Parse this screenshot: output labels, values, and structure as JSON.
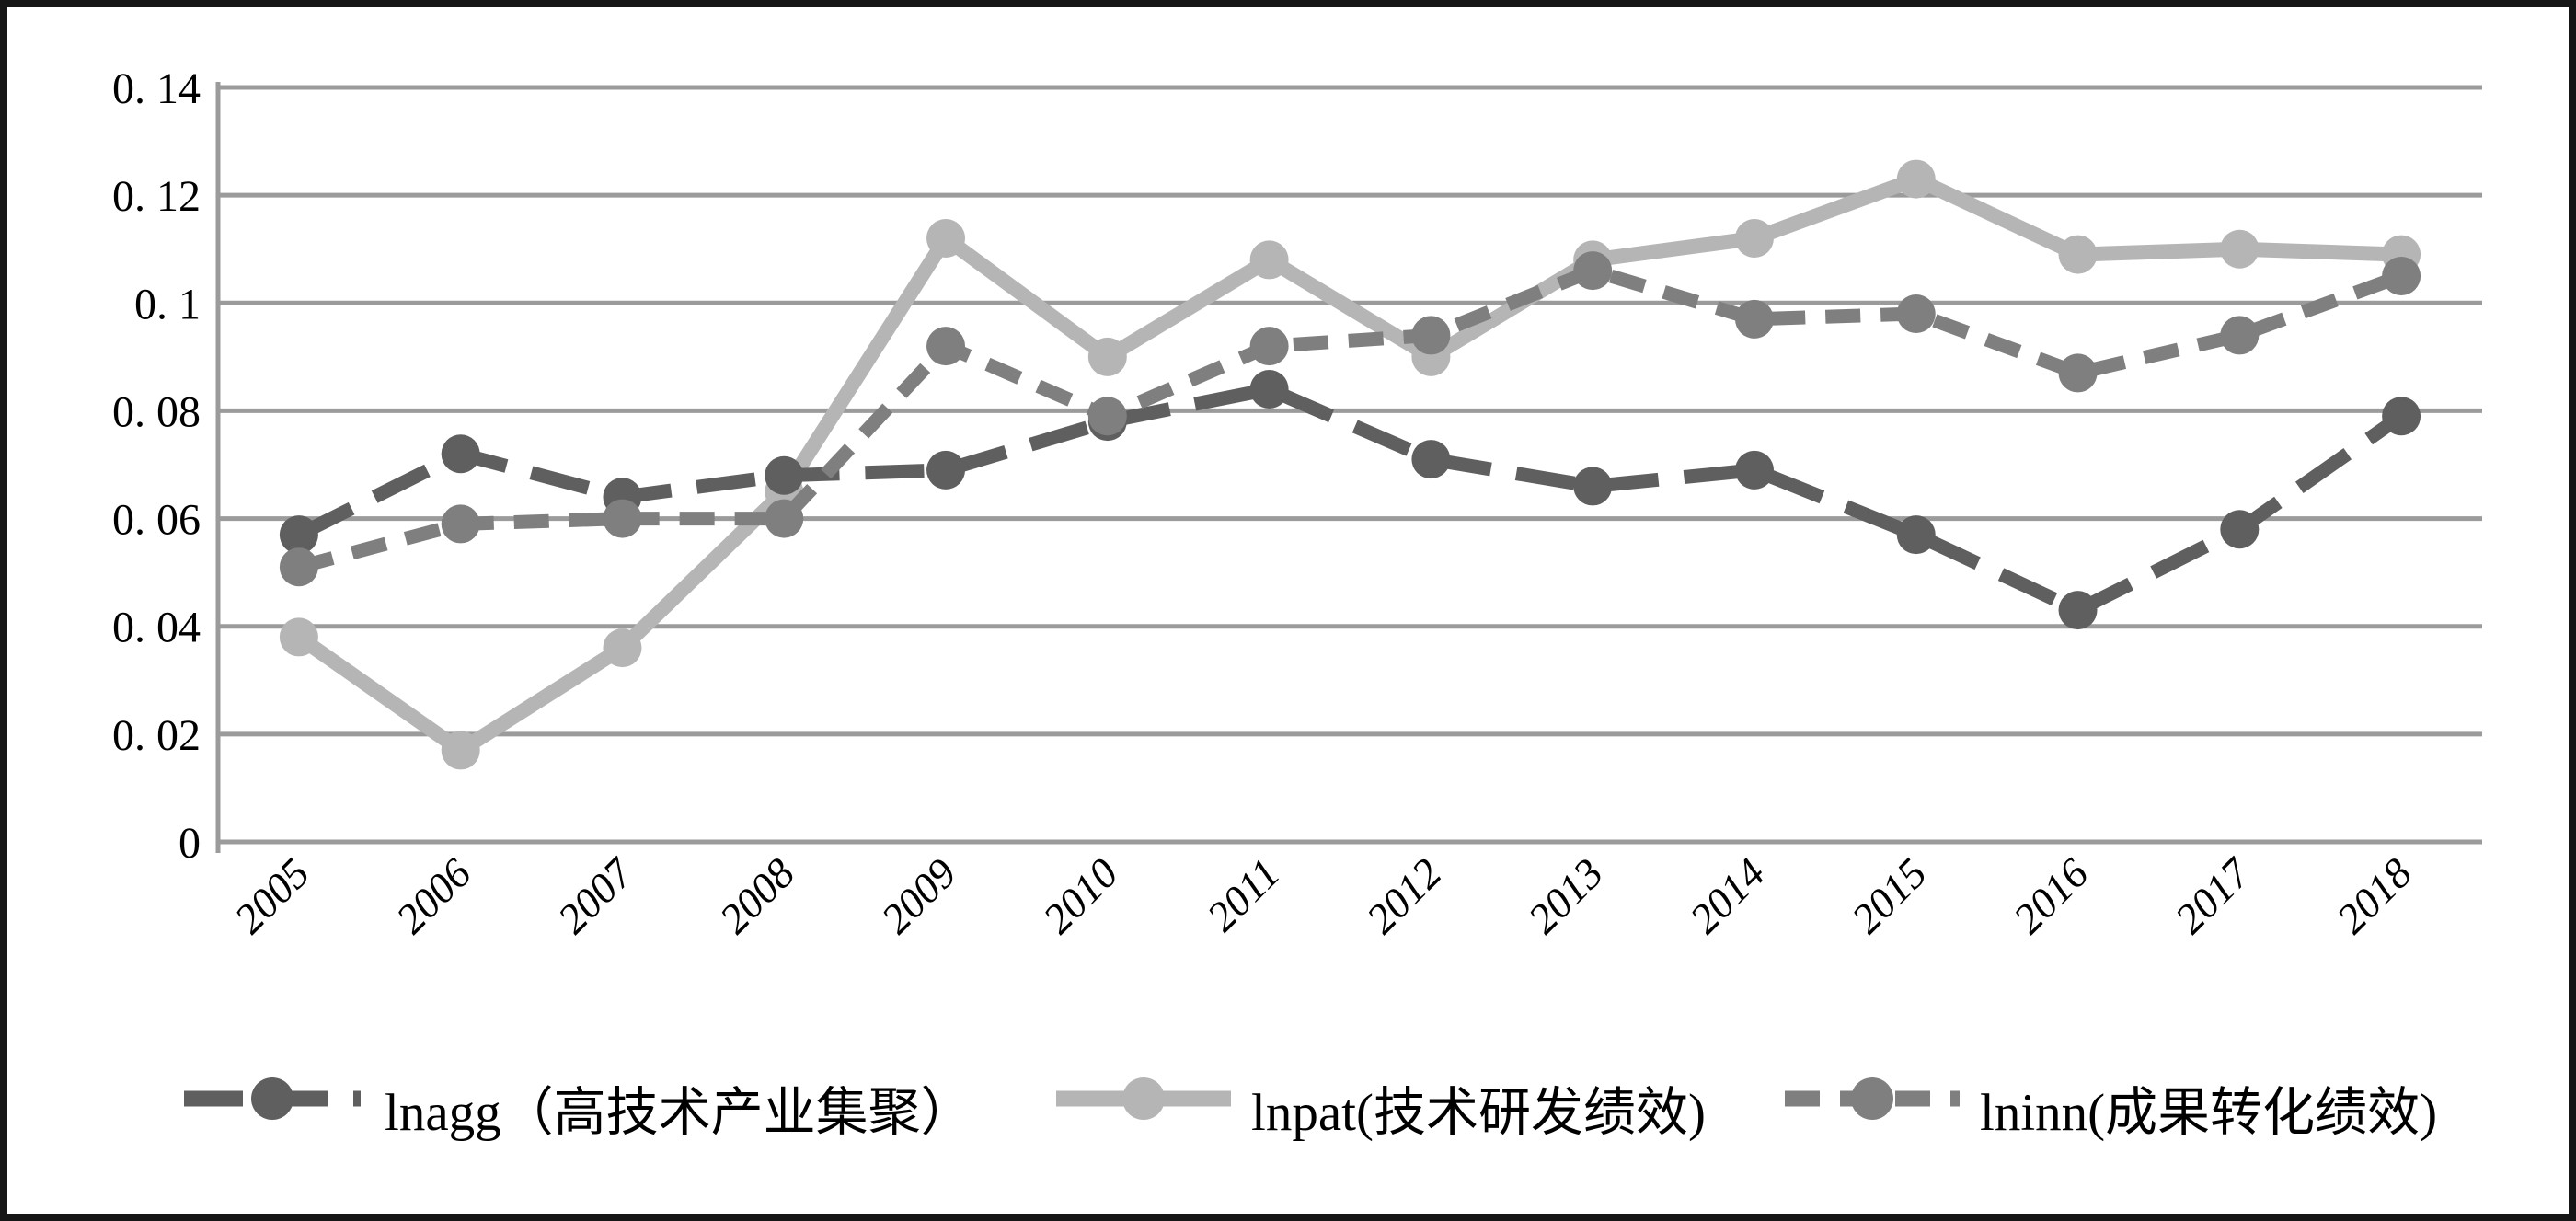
{
  "chart_data": {
    "type": "line",
    "title": "",
    "xlabel": "",
    "ylabel": "",
    "categories": [
      "2005",
      "2006",
      "2007",
      "2008",
      "2009",
      "2010",
      "2011",
      "2012",
      "2013",
      "2014",
      "2015",
      "2016",
      "2017",
      "2018"
    ],
    "series": [
      {
        "id": "lnpat",
        "label": "lnpat(技术研发绩效)",
        "color": "#b5b5b5",
        "line_style": "solid",
        "marker": "circle",
        "values": [
          0.038,
          0.017,
          0.036,
          0.065,
          0.112,
          0.09,
          0.108,
          0.09,
          0.108,
          0.112,
          0.123,
          0.109,
          0.11,
          0.109
        ]
      },
      {
        "id": "lnagg",
        "label": "lnagg（高技术产业集聚）",
        "color": "#5f5f5f",
        "line_style": "long-dash",
        "marker": "circle",
        "values": [
          0.057,
          0.072,
          0.064,
          0.068,
          0.069,
          0.078,
          0.084,
          0.071,
          0.066,
          0.069,
          0.057,
          0.043,
          0.058,
          0.079
        ]
      },
      {
        "id": "lninn",
        "label": "lninn(成果转化绩效)",
        "color": "#7f7f7f",
        "line_style": "dash",
        "marker": "circle",
        "values": [
          0.051,
          0.059,
          0.06,
          0.06,
          0.092,
          0.079,
          0.092,
          0.094,
          0.106,
          0.097,
          0.098,
          0.087,
          0.094,
          0.105
        ]
      }
    ],
    "legend_order": [
      "lnagg",
      "lnpat",
      "lninn"
    ],
    "legend_position": "bottom",
    "grid": true,
    "y_axis": {
      "min": 0,
      "max": 0.14,
      "step": 0.02,
      "tick_labels": [
        "0",
        "0. 02",
        "0. 04",
        "0. 06",
        "0. 08",
        "0. 1",
        "0. 12",
        "0. 14"
      ]
    },
    "colors": {
      "gridline": "#9b9b9b",
      "axis": "#9b9b9b",
      "text": "#000000",
      "background": "#ffffff",
      "frame": "#161616"
    }
  }
}
